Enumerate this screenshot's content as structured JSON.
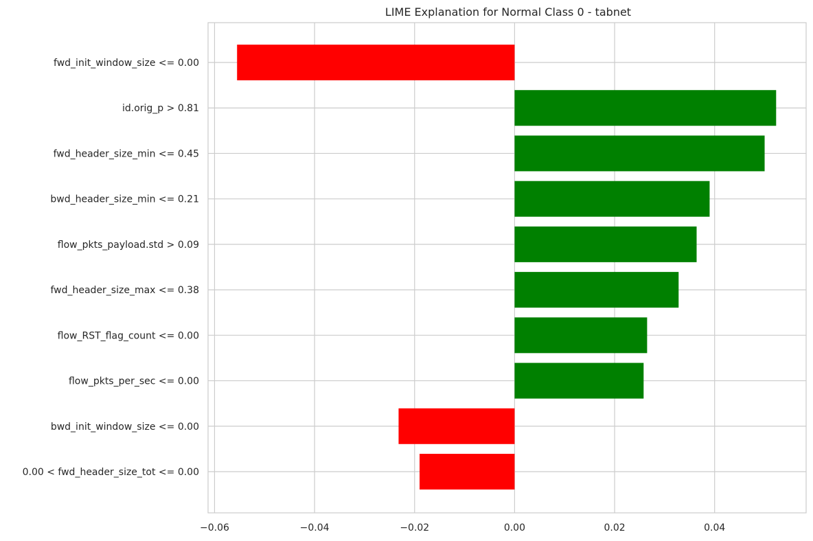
{
  "chart_data": {
    "type": "bar",
    "orientation": "horizontal",
    "title": "LIME Explanation for Normal Class 0 - tabnet",
    "xlabel": "",
    "ylabel": "",
    "xlim": [
      -0.0613,
      0.0583
    ],
    "xticks": [
      -0.06,
      -0.04,
      -0.02,
      0.0,
      0.02,
      0.04
    ],
    "xtick_labels": [
      "−0.06",
      "−0.04",
      "−0.02",
      "0.00",
      "0.02",
      "0.04"
    ],
    "grid": true,
    "legend": "none",
    "colors": {
      "positive": "#008000",
      "negative": "#ff0000",
      "grid": "#cccccc",
      "text": "#262626"
    },
    "categories": [
      "fwd_init_window_size <= 0.00",
      "id.orig_p > 0.81",
      "fwd_header_size_min <= 0.45",
      "bwd_header_size_min <= 0.21",
      "flow_pkts_payload.std > 0.09",
      "fwd_header_size_max <= 0.38",
      "flow_RST_flag_count <= 0.00",
      "flow_pkts_per_sec <= 0.00",
      "bwd_init_window_size <= 0.00",
      "0.00 < fwd_header_size_tot <= 0.00"
    ],
    "values": [
      -0.0555,
      0.0523,
      0.05,
      0.039,
      0.0364,
      0.0328,
      0.0265,
      0.0258,
      -0.0232,
      -0.019
    ]
  }
}
